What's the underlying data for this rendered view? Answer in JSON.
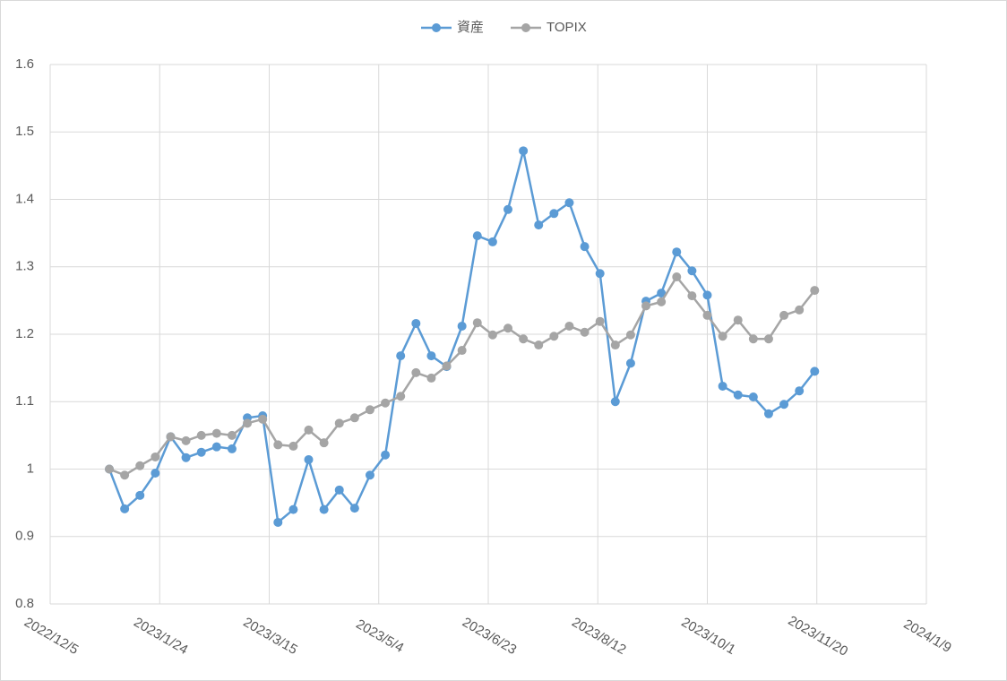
{
  "chart_data": {
    "type": "line",
    "x": [
      "2023/1/1",
      "2023/1/8",
      "2023/1/15",
      "2023/1/22",
      "2023/1/29",
      "2023/2/5",
      "2023/2/12",
      "2023/2/19",
      "2023/2/26",
      "2023/3/5",
      "2023/3/12",
      "2023/3/19",
      "2023/3/26",
      "2023/4/2",
      "2023/4/9",
      "2023/4/16",
      "2023/4/23",
      "2023/4/30",
      "2023/5/7",
      "2023/5/14",
      "2023/5/21",
      "2023/5/28",
      "2023/6/4",
      "2023/6/11",
      "2023/6/18",
      "2023/6/25",
      "2023/7/2",
      "2023/7/9",
      "2023/7/16",
      "2023/7/23",
      "2023/7/30",
      "2023/8/6",
      "2023/8/13",
      "2023/8/20",
      "2023/8/27",
      "2023/9/3",
      "2023/9/10",
      "2023/9/17",
      "2023/9/24",
      "2023/10/1",
      "2023/10/8",
      "2023/10/15",
      "2023/10/22",
      "2023/10/29",
      "2023/11/5",
      "2023/11/12",
      "2023/11/19"
    ],
    "series": [
      {
        "name": "資産",
        "color": "#5b9bd5",
        "values": [
          1.0,
          0.941,
          0.961,
          0.994,
          1.048,
          1.017,
          1.025,
          1.033,
          1.03,
          1.076,
          1.079,
          0.921,
          0.94,
          1.014,
          0.94,
          0.969,
          0.942,
          0.991,
          1.021,
          1.168,
          1.216,
          1.168,
          1.152,
          1.212,
          1.346,
          1.337,
          1.385,
          1.472,
          1.362,
          1.379,
          1.395,
          1.33,
          1.29,
          1.1,
          1.157,
          1.249,
          1.261,
          1.322,
          1.294,
          1.258,
          1.123,
          1.11,
          1.107,
          1.082,
          1.096,
          1.116,
          1.145
        ]
      },
      {
        "name": "TOPIX",
        "color": "#a5a5a5",
        "values": [
          1.0,
          0.991,
          1.005,
          1.018,
          1.048,
          1.042,
          1.05,
          1.053,
          1.05,
          1.068,
          1.074,
          1.036,
          1.034,
          1.058,
          1.039,
          1.068,
          1.076,
          1.088,
          1.098,
          1.108,
          1.143,
          1.135,
          1.153,
          1.176,
          1.217,
          1.199,
          1.209,
          1.193,
          1.184,
          1.197,
          1.212,
          1.203,
          1.219,
          1.184,
          1.199,
          1.242,
          1.248,
          1.285,
          1.257,
          1.228,
          1.197,
          1.221,
          1.193,
          1.193,
          1.228,
          1.236,
          1.265
        ]
      }
    ],
    "xlim": [
      "2022/12/5",
      "2024/1/9"
    ],
    "xticks": [
      "2022/12/5",
      "2023/1/24",
      "2023/3/15",
      "2023/5/4",
      "2023/6/23",
      "2023/8/12",
      "2023/10/1",
      "2023/11/20",
      "2024/1/9"
    ],
    "ylim": [
      0.8,
      1.6
    ],
    "yticks": [
      0.8,
      0.9,
      1,
      1.1,
      1.2,
      1.3,
      1.4,
      1.5,
      1.6
    ],
    "grid": true,
    "legend": "top"
  }
}
